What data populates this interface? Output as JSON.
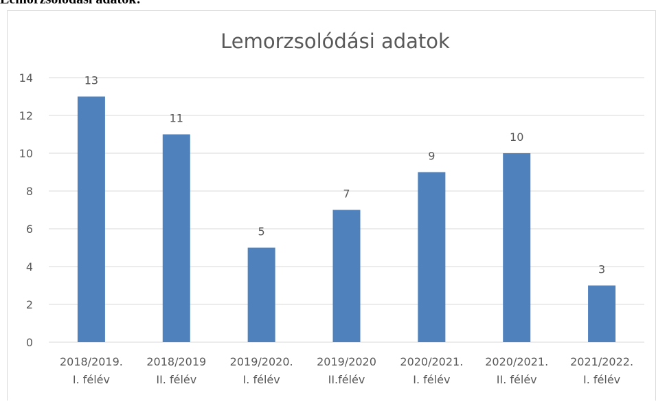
{
  "heading": "Lemorzsolódási adatok:",
  "chart_data": {
    "type": "bar",
    "title": "Lemorzsolódási adatok",
    "categories": [
      [
        "2018/2019.",
        "I. félév"
      ],
      [
        "2018/2019",
        "II. félév"
      ],
      [
        "2019/2020.",
        "I. félév"
      ],
      [
        "2019/2020",
        "II.félév"
      ],
      [
        "2020/2021.",
        "I. félév"
      ],
      [
        "2020/2021.",
        "II. félév"
      ],
      [
        "2021/2022.",
        "I. félév"
      ]
    ],
    "values": [
      13,
      11,
      5,
      7,
      9,
      10,
      3
    ],
    "color": "#4f81bd",
    "ylim": [
      0,
      14
    ],
    "yticks": [
      0,
      2,
      4,
      6,
      8,
      10,
      12,
      14
    ],
    "grid": true
  }
}
